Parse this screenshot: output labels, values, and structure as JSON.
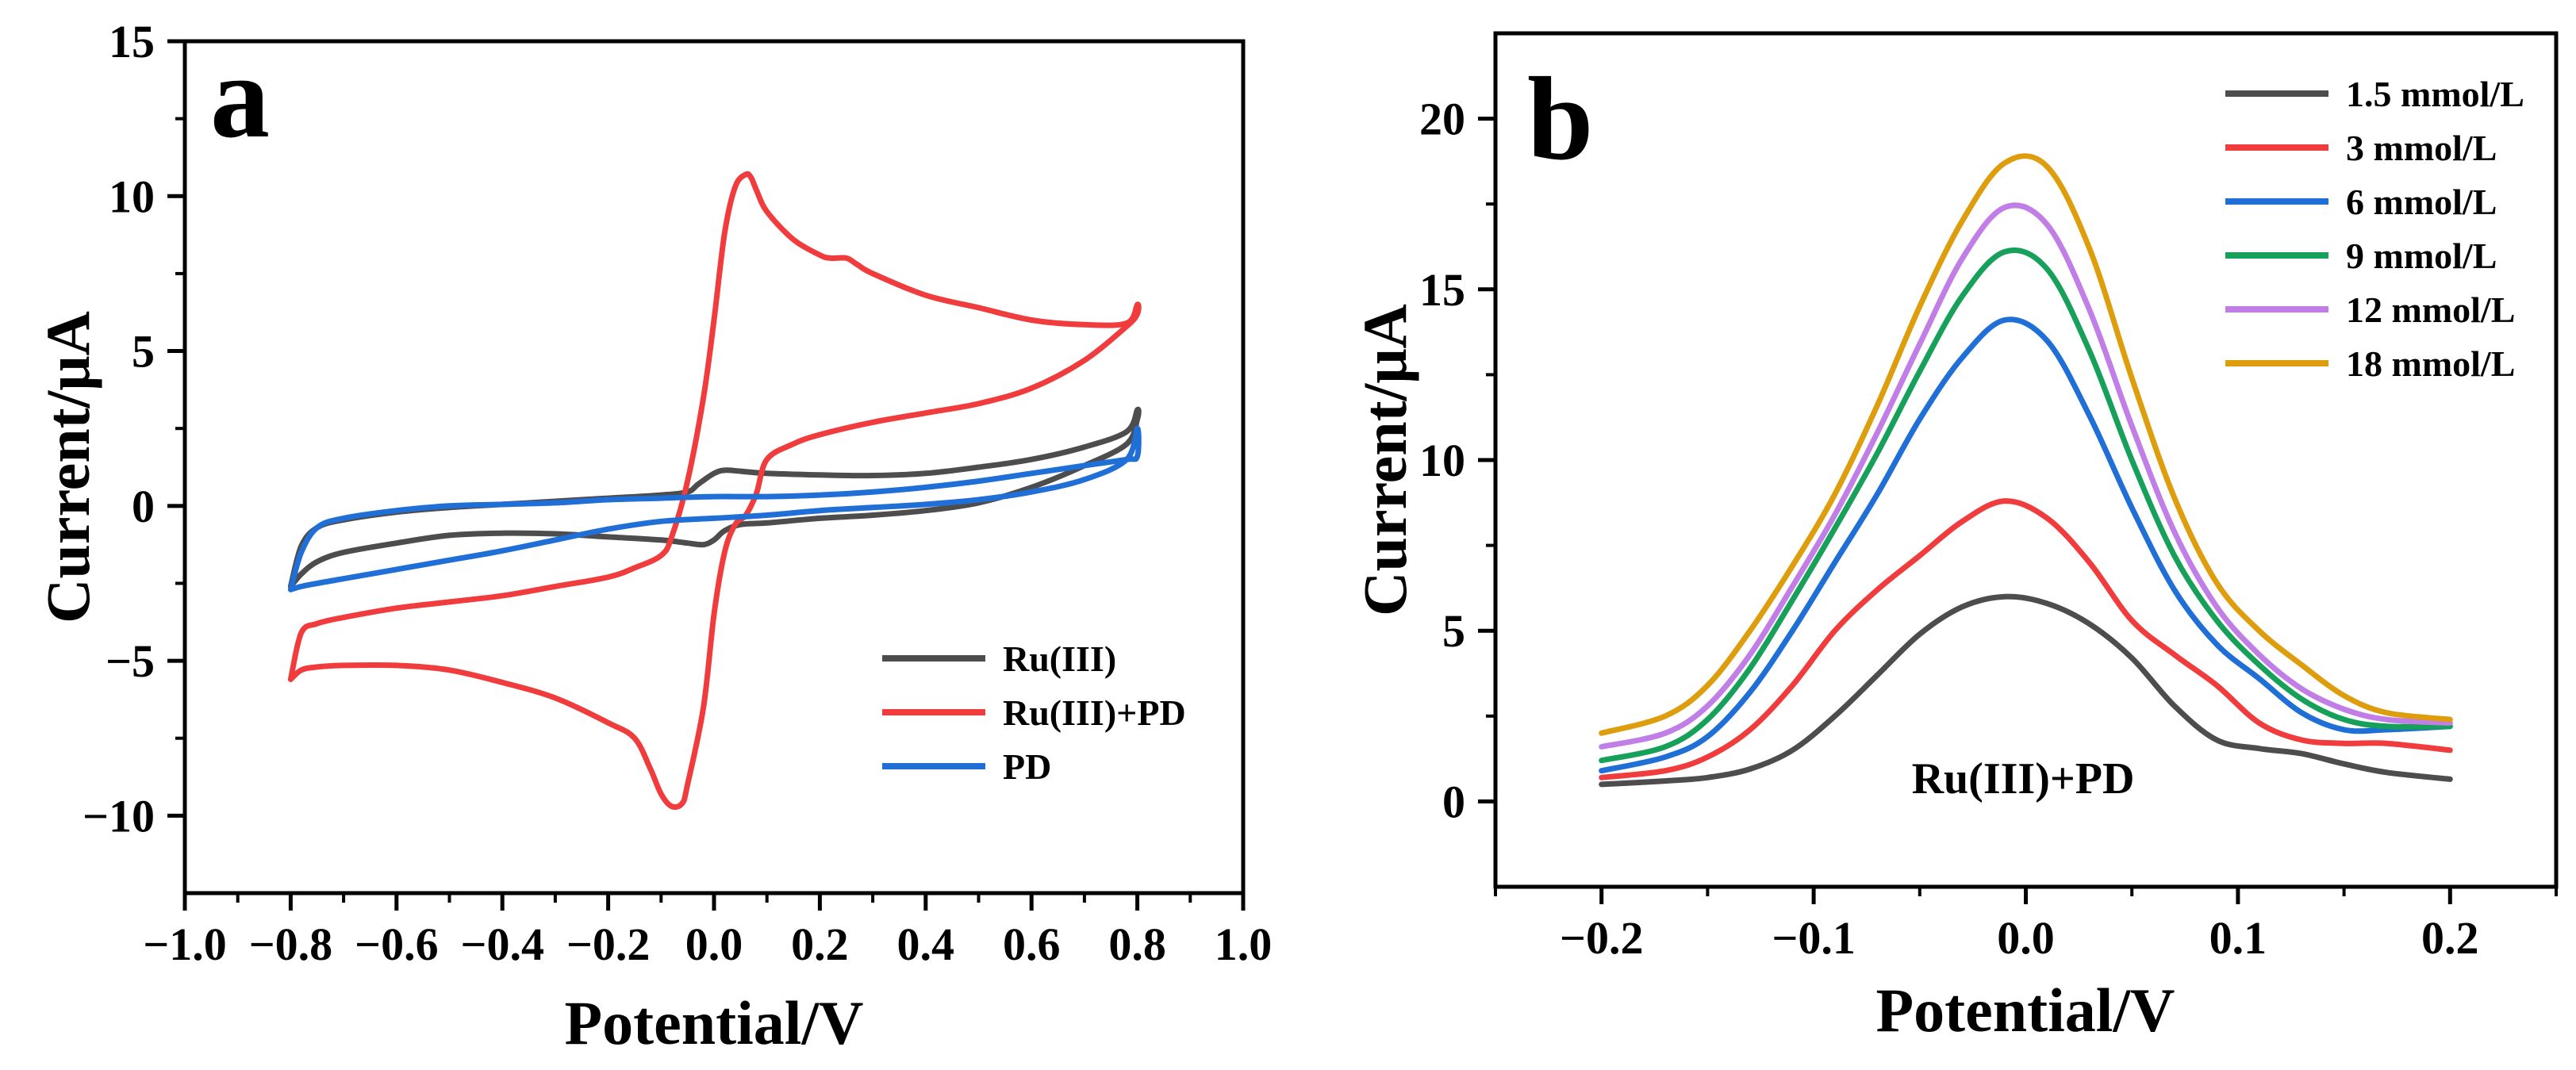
{
  "chart_data": [
    {
      "type": "line",
      "panel_label": "a",
      "xlabel": "Potential/V",
      "ylabel": "Current/μA",
      "xlim": [
        -1.0,
        1.0
      ],
      "ylim": [
        -12.5,
        15
      ],
      "xticks": [
        -1.0,
        -0.8,
        -0.6,
        -0.4,
        -0.2,
        0.0,
        0.2,
        0.4,
        0.6,
        0.8,
        1.0
      ],
      "xtick_labels": [
        "−1.0",
        "−0.8",
        "−0.6",
        "−0.4",
        "−0.2",
        "0.0",
        "0.2",
        "0.4",
        "0.6",
        "0.8",
        "1.0"
      ],
      "yticks": [
        -10,
        -5,
        0,
        5,
        10,
        15
      ],
      "ytick_labels": [
        "−10",
        "−5",
        "0",
        "5",
        "10",
        "15"
      ],
      "grid": false,
      "legend_position": "lower-right",
      "series": [
        {
          "name": "Ru(III)",
          "color": "#4d4d4d",
          "x": [
            -0.8,
            -0.78,
            -0.75,
            -0.7,
            -0.6,
            -0.5,
            -0.4,
            -0.3,
            -0.2,
            -0.1,
            -0.05,
            -0.02,
            0.0,
            0.02,
            0.05,
            0.1,
            0.2,
            0.3,
            0.4,
            0.5,
            0.6,
            0.7,
            0.78,
            0.8,
            0.8,
            0.78,
            0.7,
            0.6,
            0.5,
            0.4,
            0.3,
            0.2,
            0.1,
            0.05,
            0.02,
            0.0,
            -0.03,
            -0.05,
            -0.1,
            -0.2,
            -0.3,
            -0.4,
            -0.5,
            -0.6,
            -0.7,
            -0.75,
            -0.78,
            -0.8
          ],
          "y": [
            -2.6,
            -2.2,
            -1.8,
            -1.5,
            -1.2,
            -0.95,
            -0.88,
            -0.9,
            -1.0,
            -1.1,
            -1.2,
            -1.25,
            -1.1,
            -0.8,
            -0.6,
            -0.55,
            -0.4,
            -0.3,
            -0.15,
            0.1,
            0.6,
            1.3,
            2.0,
            2.8,
            3.1,
            2.4,
            1.9,
            1.5,
            1.25,
            1.05,
            0.98,
            1.0,
            1.05,
            1.12,
            1.15,
            1.05,
            0.7,
            0.45,
            0.35,
            0.25,
            0.15,
            0.05,
            -0.05,
            -0.2,
            -0.45,
            -0.7,
            -1.3,
            -2.6
          ]
        },
        {
          "name": "Ru(III)+PD",
          "color": "#f03c3c",
          "x": [
            -0.8,
            -0.78,
            -0.75,
            -0.7,
            -0.6,
            -0.5,
            -0.4,
            -0.3,
            -0.2,
            -0.15,
            -0.12,
            -0.1,
            -0.08,
            -0.06,
            -0.05,
            -0.02,
            0.0,
            0.02,
            0.04,
            0.06,
            0.08,
            0.1,
            0.15,
            0.2,
            0.3,
            0.4,
            0.5,
            0.6,
            0.7,
            0.78,
            0.8,
            0.8,
            0.78,
            0.7,
            0.6,
            0.5,
            0.4,
            0.3,
            0.27,
            0.25,
            0.22,
            0.2,
            0.15,
            0.1,
            0.08,
            0.07,
            0.06,
            0.04,
            0.02,
            0.0,
            -0.02,
            -0.05,
            -0.08,
            -0.1,
            -0.15,
            -0.2,
            -0.3,
            -0.4,
            -0.5,
            -0.6,
            -0.7,
            -0.75,
            -0.78,
            -0.8
          ],
          "y": [
            -5.6,
            -5.3,
            -5.2,
            -5.15,
            -5.15,
            -5.3,
            -5.7,
            -6.2,
            -7.0,
            -7.5,
            -8.5,
            -9.3,
            -9.7,
            -9.6,
            -9.0,
            -6.5,
            -3.5,
            -1.5,
            -0.6,
            -0.3,
            0.4,
            1.5,
            2.0,
            2.3,
            2.7,
            3.0,
            3.3,
            3.8,
            4.7,
            5.8,
            6.2,
            6.5,
            5.9,
            5.85,
            6.0,
            6.4,
            6.8,
            7.5,
            7.8,
            8.0,
            8.0,
            8.1,
            8.6,
            9.5,
            10.2,
            10.6,
            10.7,
            10.3,
            8.8,
            6.0,
            3.5,
            0.8,
            -1.0,
            -1.6,
            -2.0,
            -2.3,
            -2.6,
            -2.9,
            -3.1,
            -3.3,
            -3.6,
            -3.8,
            -4.1,
            -5.6
          ]
        },
        {
          "name": "PD",
          "color": "#1f6fd6",
          "x": [
            -0.8,
            -0.78,
            -0.75,
            -0.7,
            -0.6,
            -0.5,
            -0.4,
            -0.3,
            -0.2,
            -0.1,
            0.0,
            0.1,
            0.2,
            0.3,
            0.4,
            0.5,
            0.6,
            0.7,
            0.78,
            0.8,
            0.8,
            0.78,
            0.7,
            0.6,
            0.5,
            0.4,
            0.3,
            0.2,
            0.1,
            0.0,
            -0.1,
            -0.2,
            -0.3,
            -0.4,
            -0.5,
            -0.6,
            -0.7,
            -0.75,
            -0.78,
            -0.8
          ],
          "y": [
            -2.7,
            -2.6,
            -2.5,
            -2.35,
            -2.05,
            -1.75,
            -1.45,
            -1.1,
            -0.75,
            -0.5,
            -0.4,
            -0.3,
            -0.15,
            -0.05,
            0.05,
            0.2,
            0.45,
            0.85,
            1.5,
            2.5,
            1.6,
            1.5,
            1.3,
            1.05,
            0.8,
            0.6,
            0.45,
            0.35,
            0.3,
            0.3,
            0.25,
            0.2,
            0.1,
            0.05,
            0.0,
            -0.15,
            -0.4,
            -0.7,
            -1.5,
            -2.7
          ]
        }
      ]
    },
    {
      "type": "line",
      "panel_label": "b",
      "xlabel": "Potential/V",
      "ylabel": "Current/μA",
      "xlim": [
        -0.25,
        0.25
      ],
      "ylim": [
        -2.5,
        22.5
      ],
      "xticks": [
        -0.2,
        -0.1,
        0.0,
        0.1,
        0.2
      ],
      "xtick_labels": [
        "−0.2",
        "−0.1",
        "0.0",
        "0.1",
        "0.2"
      ],
      "yticks": [
        0,
        5,
        10,
        15,
        20
      ],
      "ytick_labels": [
        "0",
        "5",
        "10",
        "15",
        "20"
      ],
      "grid": false,
      "legend_position": "top-right",
      "annotation": "Ru(III)+PD",
      "series": [
        {
          "name": "1.5 mmol/L",
          "color": "#4d4d4d",
          "x": [
            -0.2,
            -0.17,
            -0.15,
            -0.13,
            -0.11,
            -0.09,
            -0.07,
            -0.05,
            -0.03,
            -0.01,
            0.01,
            0.03,
            0.05,
            0.07,
            0.09,
            0.11,
            0.13,
            0.15,
            0.17,
            0.2
          ],
          "y": [
            0.5,
            0.6,
            0.7,
            0.95,
            1.5,
            2.5,
            3.7,
            4.9,
            5.7,
            6.0,
            5.8,
            5.2,
            4.2,
            2.8,
            1.8,
            1.55,
            1.4,
            1.1,
            0.85,
            0.65
          ]
        },
        {
          "name": "3 mmol/L",
          "color": "#f03c3c",
          "x": [
            -0.2,
            -0.17,
            -0.15,
            -0.13,
            -0.11,
            -0.09,
            -0.07,
            -0.05,
            -0.03,
            -0.01,
            0.01,
            0.03,
            0.05,
            0.07,
            0.09,
            0.11,
            0.13,
            0.15,
            0.17,
            0.2
          ],
          "y": [
            0.7,
            0.9,
            1.3,
            2.1,
            3.4,
            5.0,
            6.2,
            7.2,
            8.2,
            8.8,
            8.3,
            7.0,
            5.3,
            4.3,
            3.4,
            2.3,
            1.8,
            1.7,
            1.7,
            1.5
          ]
        },
        {
          "name": "6 mmol/L",
          "color": "#1f6fd6",
          "x": [
            -0.2,
            -0.17,
            -0.15,
            -0.13,
            -0.11,
            -0.09,
            -0.07,
            -0.05,
            -0.03,
            -0.01,
            0.01,
            0.03,
            0.05,
            0.07,
            0.09,
            0.11,
            0.13,
            0.15,
            0.17,
            0.2
          ],
          "y": [
            0.9,
            1.3,
            1.9,
            3.2,
            5.0,
            7.0,
            9.0,
            11.2,
            13.0,
            14.1,
            13.5,
            11.3,
            8.6,
            6.2,
            4.6,
            3.6,
            2.6,
            2.1,
            2.1,
            2.2
          ]
        },
        {
          "name": "9 mmol/L",
          "color": "#17a05a",
          "x": [
            -0.2,
            -0.17,
            -0.15,
            -0.13,
            -0.11,
            -0.09,
            -0.07,
            -0.05,
            -0.03,
            -0.01,
            0.01,
            0.03,
            0.05,
            0.07,
            0.09,
            0.11,
            0.13,
            0.15,
            0.17,
            0.2
          ],
          "y": [
            1.2,
            1.6,
            2.4,
            3.9,
            5.9,
            8.0,
            10.2,
            12.6,
            14.8,
            16.1,
            15.6,
            13.2,
            10.0,
            7.2,
            5.3,
            4.0,
            3.0,
            2.4,
            2.2,
            2.2
          ]
        },
        {
          "name": "12 mmol/L",
          "color": "#c07ee6",
          "x": [
            -0.2,
            -0.17,
            -0.15,
            -0.13,
            -0.11,
            -0.09,
            -0.07,
            -0.05,
            -0.03,
            -0.01,
            0.01,
            0.03,
            0.05,
            0.07,
            0.09,
            0.11,
            0.13,
            0.15,
            0.17,
            0.2
          ],
          "y": [
            1.6,
            2.0,
            2.8,
            4.3,
            6.3,
            8.4,
            10.8,
            13.4,
            15.9,
            17.4,
            16.9,
            14.4,
            11.0,
            7.9,
            5.7,
            4.3,
            3.3,
            2.7,
            2.4,
            2.3
          ]
        },
        {
          "name": "18 mmol/L",
          "color": "#dd9d0c",
          "x": [
            -0.2,
            -0.17,
            -0.15,
            -0.13,
            -0.11,
            -0.09,
            -0.07,
            -0.05,
            -0.03,
            -0.01,
            0.01,
            0.03,
            0.05,
            0.07,
            0.09,
            0.11,
            0.13,
            0.15,
            0.17,
            0.2
          ],
          "y": [
            2.0,
            2.5,
            3.4,
            5.0,
            6.9,
            9.0,
            11.6,
            14.5,
            17.0,
            18.7,
            18.6,
            16.2,
            12.4,
            8.9,
            6.4,
            5.0,
            4.0,
            3.1,
            2.6,
            2.4
          ]
        }
      ]
    }
  ]
}
